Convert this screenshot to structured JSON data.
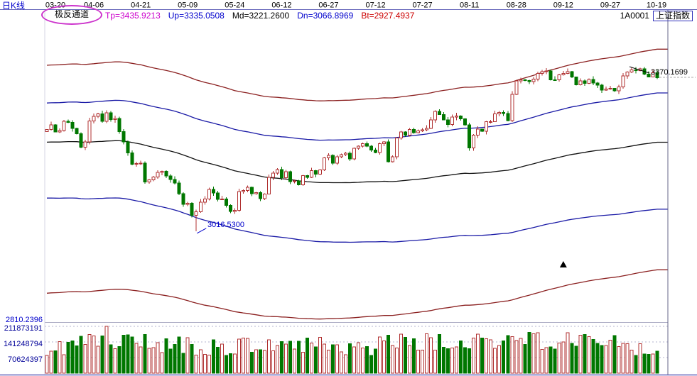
{
  "header": {
    "chart_type_label": "日K线",
    "indicator_name": "极反通道",
    "indicator_values": [
      {
        "key": "Tp",
        "label": "Tp=3435.9213",
        "color": "#cc00cc"
      },
      {
        "key": "Up",
        "label": "Up=3335.0508",
        "color": "#0000cc"
      },
      {
        "key": "Md",
        "label": "Md=3221.2600",
        "color": "#000000"
      },
      {
        "key": "Dn",
        "label": "Dn=3066.8969",
        "color": "#0000cc"
      },
      {
        "key": "Bt",
        "label": "Bt=2927.4937",
        "color": "#cc0000"
      }
    ],
    "symbol_code": "1A0001",
    "symbol_name": "上证指数"
  },
  "axes": {
    "price_label": "2810.2396",
    "volume_labels": [
      "211873191",
      "141248794",
      "70624397"
    ]
  },
  "chart_data": {
    "type": "candlestick+volume",
    "title": "1A0001 上证指数 日K线 (极反通道)",
    "x_ticks": [
      "03-20",
      "04-06",
      "04-21",
      "05-09",
      "05-24",
      "06-12",
      "06-27",
      "07-12",
      "07-27",
      "08-11",
      "08-28",
      "09-12",
      "09-27",
      "10-19"
    ],
    "tick_every": 11,
    "price_axis": {
      "min": 2810.2396,
      "max": 3500
    },
    "volume_axis": {
      "gridlines": [
        70624397,
        141248794,
        211873191
      ]
    },
    "indicator": {
      "name": "极反通道",
      "Tp": 3435.9213,
      "Up": 3335.0508,
      "Md": 3221.26,
      "Dn": 3066.8969,
      "Bt": 2927.4937
    },
    "first_open": 3246.0,
    "closes": [
      3250.81,
      3261.61,
      3245.22,
      3248.55,
      3269.45,
      3266.81,
      3252.95,
      3241.31,
      3210.24,
      3222.51,
      3270.31,
      3281.0,
      3286.62,
      3269.39,
      3288.97,
      3273.83,
      3275.96,
      3246.07,
      3222.17,
      3196.71,
      3170.69,
      3172.1,
      3173.15,
      3129.53,
      3134.57,
      3140.85,
      3152.19,
      3154.66,
      3143.71,
      3135.35,
      3127.37,
      3103.04,
      3078.61,
      3080.53,
      3052.79,
      3061.5,
      3083.51,
      3090.23,
      3112.96,
      3104.44,
      3090.14,
      3090.63,
      3075.68,
      3061.95,
      3064.08,
      3107.83,
      3110.06,
      3117.18,
      3102.62,
      3105.54,
      3091.66,
      3102.13,
      3140.32,
      3150.33,
      3158.4,
      3139.88,
      3153.74,
      3130.67,
      3132.49,
      3123.17,
      3144.37,
      3140.01,
      3156.21,
      3147.45,
      3157.87,
      3185.44,
      3191.2,
      3173.2,
      3188.06,
      3192.43,
      3195.91,
      3182.8,
      3207.13,
      3212.44,
      3217.96,
      3212.63,
      3203.04,
      3197.54,
      3218.16,
      3222.42,
      3176.46,
      3187.57,
      3230.98,
      3244.86,
      3237.98,
      3250.6,
      3243.69,
      3247.67,
      3249.78,
      3253.24,
      3273.03,
      3292.64,
      3285.06,
      3272.93,
      3262.08,
      3279.46,
      3281.87,
      3275.57,
      3261.75,
      3208.54,
      3237.36,
      3251.26,
      3246.45,
      3268.43,
      3268.72,
      3286.91,
      3290.23,
      3287.7,
      3271.51,
      3331.52,
      3362.65,
      3365.23,
      3363.63,
      3360.81,
      3367.12,
      3379.58,
      3384.32,
      3385.39,
      3365.5,
      3365.24,
      3376.42,
      3379.49,
      3384.15,
      3371.43,
      3353.62,
      3362.86,
      3356.84,
      3365.98,
      3357.81,
      3352.53,
      3341.55,
      3343.58,
      3345.27,
      3339.64,
      3348.94,
      3374.38,
      3382.99,
      3388.28,
      3386.1,
      3390.52,
      3378.47,
      3372.04,
      3381.79,
      3370.17
    ],
    "annotations": {
      "low_label": "3016.5300",
      "low_point": {
        "bar_index": 35,
        "price": 3016.53
      },
      "last_label": "3370.1699",
      "last_close": 3370.1699,
      "signal_marker": {
        "shape": "up-triangle",
        "bar_index": 121,
        "price": 2941,
        "color": "#000000"
      }
    },
    "colors": {
      "up": "#b03030",
      "down": "#007700",
      "line_outer": "#8b2020",
      "line_inner": "#1a1aa6",
      "line_mid": "#111111",
      "highlight_ellipse": "#cc33cc",
      "volume_axis_text": "#000099",
      "price_axis_text": "#0000cc",
      "kline_label_text": "#0000cc"
    }
  }
}
